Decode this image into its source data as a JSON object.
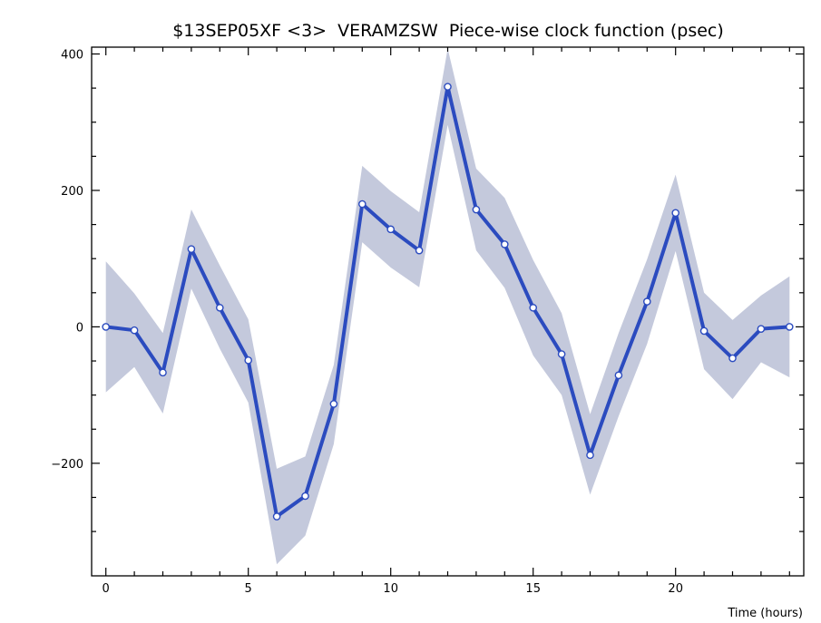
{
  "chart_data": {
    "type": "line",
    "title": "$13SEP05XF <3>  VERAMZSW  Piece-wise clock function (psec)",
    "xlabel": "Time (hours)",
    "ylabel": "",
    "xlim": [
      -0.5,
      24.5
    ],
    "ylim": [
      -365,
      410
    ],
    "xticks": [
      0,
      5,
      10,
      15,
      20
    ],
    "xtick_labels": [
      "0",
      "5",
      "10",
      "15",
      "20"
    ],
    "yticks": [
      -200,
      0,
      200,
      400
    ],
    "ytick_labels": [
      "−200",
      "0",
      "200",
      "400"
    ],
    "grid": false,
    "legend": "none",
    "colors": {
      "line": "#2b4bbf",
      "band": "#c4c9dc",
      "marker_fill": "#ffffff",
      "axis": "#000000"
    },
    "series": [
      {
        "x": [
          0,
          1,
          2,
          3,
          4,
          5,
          6,
          7,
          8,
          9,
          10,
          11,
          12,
          13,
          14,
          15,
          16,
          17,
          18,
          19,
          20,
          21,
          22,
          23,
          24
        ],
        "y": [
          0,
          -5,
          -67,
          114,
          28,
          -49,
          -278,
          -248,
          -113,
          180,
          143,
          112,
          352,
          172,
          121,
          28,
          -40,
          -188,
          -71,
          37,
          167,
          -6,
          -46,
          -3,
          0
        ],
        "band_upper": [
          96,
          49,
          -9,
          172,
          90,
          11,
          -208,
          -190,
          -56,
          236,
          199,
          168,
          408,
          232,
          189,
          98,
          20,
          -128,
          -9,
          99,
          223,
          50,
          10,
          46,
          74
        ],
        "band_lower": [
          -96,
          -59,
          -127,
          56,
          -32,
          -111,
          -348,
          -306,
          -172,
          124,
          87,
          58,
          296,
          112,
          57,
          -42,
          -100,
          -246,
          -131,
          -25,
          111,
          -62,
          -106,
          -52,
          -74
        ]
      }
    ]
  }
}
